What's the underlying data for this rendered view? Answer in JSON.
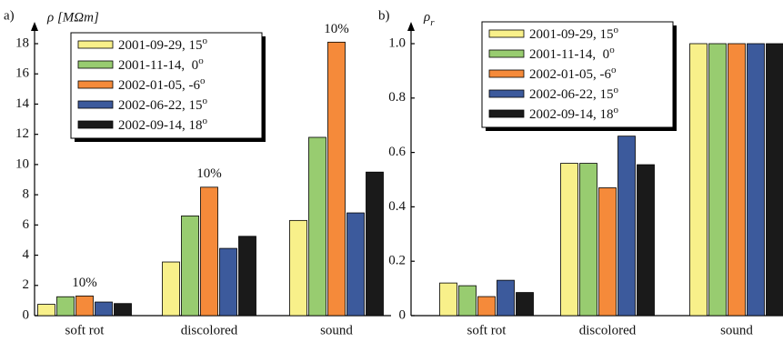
{
  "chart_data": [
    {
      "type": "bar",
      "panel": "a)",
      "ylabel": "ρ [MΩm]",
      "categories": [
        "soft rot",
        "discolored",
        "sound"
      ],
      "series": [
        {
          "name": "2001-09-29, 15o",
          "color": "#f8f08a",
          "values": [
            0.75,
            3.55,
            6.3
          ]
        },
        {
          "name": "2001-11-14,  0o",
          "color": "#98cc70",
          "values": [
            1.25,
            6.6,
            11.8
          ]
        },
        {
          "name": "2002-01-05, -6o",
          "color": "#f58a3a",
          "values": [
            1.3,
            8.5,
            18.1
          ]
        },
        {
          "name": "2002-06-22, 15o",
          "color": "#3c5a9c",
          "values": [
            0.9,
            4.45,
            6.8
          ]
        },
        {
          "name": "2002-09-14, 18o",
          "color": "#1a1a1a",
          "values": [
            0.8,
            5.25,
            9.5
          ]
        }
      ],
      "annotations": [
        "10%",
        "10%",
        "10%"
      ],
      "ylim": [
        0,
        18
      ],
      "yticks": [
        0,
        2,
        4,
        6,
        8,
        10,
        12,
        14,
        16,
        18
      ]
    },
    {
      "type": "bar",
      "panel": "b)",
      "ylabel": "ρr",
      "categories": [
        "soft rot",
        "discolored",
        "sound"
      ],
      "series": [
        {
          "name": "2001-09-29, 15o",
          "color": "#f8f08a",
          "values": [
            0.12,
            0.56,
            1
          ]
        },
        {
          "name": "2001-11-14,  0o",
          "color": "#98cc70",
          "values": [
            0.11,
            0.56,
            1
          ]
        },
        {
          "name": "2002-01-05, -6o",
          "color": "#f58a3a",
          "values": [
            0.07,
            0.47,
            1
          ]
        },
        {
          "name": "2002-06-22, 15o",
          "color": "#3c5a9c",
          "values": [
            0.13,
            0.66,
            1
          ]
        },
        {
          "name": "2002-09-14, 18o",
          "color": "#1a1a1a",
          "values": [
            0.085,
            0.555,
            1
          ]
        }
      ],
      "ylim": [
        0,
        1
      ],
      "yticks": [
        0,
        0.2,
        0.4,
        0.6,
        0.8,
        {
          "value": 1,
          "label": "1.0"
        }
      ]
    }
  ]
}
